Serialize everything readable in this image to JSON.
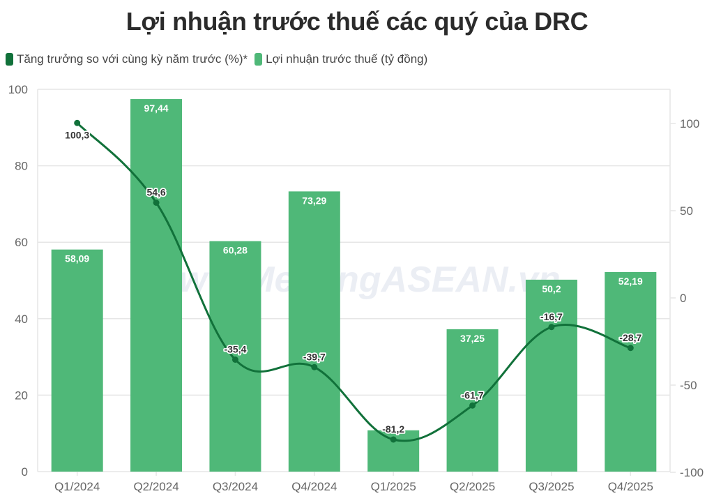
{
  "title": "Lợi nhuận trước thuế các quý của DRC",
  "legend": [
    {
      "label": "Tăng trưởng so với cùng kỳ năm trước (%)*",
      "color": "#11713a"
    },
    {
      "label": "Lợi nhuận trước thuế (tỷ đồng)",
      "color": "#4fb878"
    }
  ],
  "watermark": "www.MekongASEAN.vn",
  "colors": {
    "bar": "#4fb878",
    "line": "#11713a",
    "grid": "#e6e6e6"
  },
  "chart_data": {
    "type": "bar+line",
    "title": "Lợi nhuận trước thuế các quý của DRC",
    "categories": [
      "Q1/2024",
      "Q2/2024",
      "Q3/2024",
      "Q4/2024",
      "Q1/2025",
      "Q2/2025",
      "Q3/2025",
      "Q4/2025"
    ],
    "series": [
      {
        "name": "Lợi nhuận trước thuế (tỷ đồng)",
        "type": "bar",
        "axis": "left",
        "values": [
          58.09,
          97.44,
          60.28,
          73.29,
          10.8,
          37.25,
          50.2,
          52.19
        ],
        "labels": [
          "58,09",
          "97,44",
          "60,28",
          "73,29",
          "",
          "37,25",
          "50,2",
          "52,19"
        ]
      },
      {
        "name": "Tăng trưởng so với cùng kỳ năm trước (%)*",
        "type": "line",
        "axis": "right",
        "values": [
          100.3,
          54.6,
          -35.4,
          -39.7,
          -81.2,
          -61.7,
          -16.7,
          -28.7
        ],
        "labels": [
          "100,3",
          "54,6",
          "-35,4",
          "-39,7",
          "-81,2",
          "-61,7",
          "-16,7",
          "-28,7"
        ]
      }
    ],
    "left_axis": {
      "ticks": [
        "0",
        "20",
        "40",
        "60",
        "80",
        "100"
      ],
      "range": [
        0,
        100
      ]
    },
    "right_axis": {
      "ticks": [
        "-100",
        "-50",
        "0",
        "50",
        "100"
      ],
      "range": [
        -100,
        119.6
      ]
    },
    "xlabel": "",
    "ylabel": "",
    "grid": true,
    "legend_position": "top-left"
  }
}
